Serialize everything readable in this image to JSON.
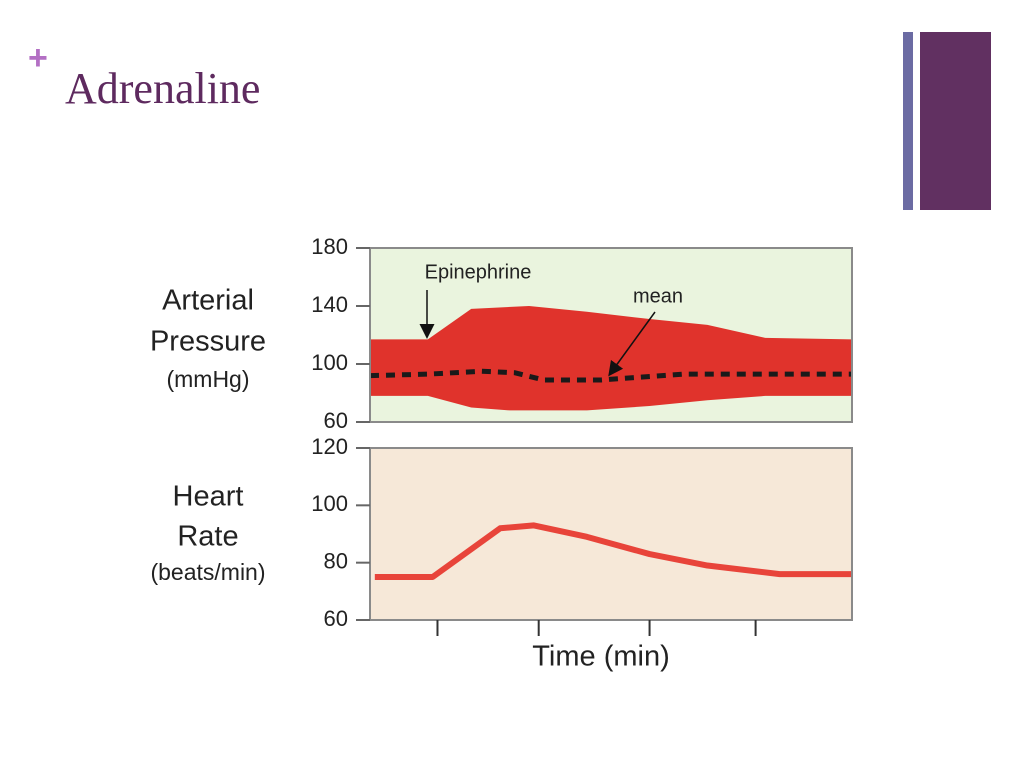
{
  "title": "Adrenaline",
  "chart_data": [
    {
      "type": "area",
      "ylabel": [
        "Arterial",
        "Pressure",
        "(mmHg)"
      ],
      "annotations": [
        "Epinephrine",
        "mean"
      ],
      "background": "#eaf4de",
      "xlim": [
        0,
        10
      ],
      "ylim": [
        60,
        180
      ],
      "yticks": [
        60,
        100,
        140,
        180
      ],
      "series": [
        {
          "color": "#e0332c",
          "x": [
            0,
            1.2,
            2.1,
            3.3,
            4.5,
            5.8,
            7,
            8.2,
            10
          ],
          "values": [
            117,
            117,
            138,
            140,
            136,
            131,
            127,
            118,
            117
          ]
        },
        {
          "color": "#e0332c",
          "x": [
            0,
            1.2,
            2.1,
            2.9,
            4.5,
            5.8,
            7,
            8.2,
            10
          ],
          "values": [
            78,
            78,
            70,
            68,
            68,
            71,
            75,
            78,
            78
          ]
        },
        {
          "color": "#1a1a1a",
          "style": "dashed",
          "x": [
            0,
            1.2,
            2.3,
            3,
            3.6,
            4.8,
            6.5,
            10
          ],
          "values": [
            92,
            93,
            95,
            94,
            89,
            89,
            93,
            93
          ]
        }
      ]
    },
    {
      "type": "line",
      "ylabel": [
        "Heart",
        "Rate",
        "(beats/min)"
      ],
      "xlabel": "Time (min)",
      "background": "#f6e8d8",
      "xlim": [
        0,
        10
      ],
      "xticks": [
        1.4,
        3.5,
        5.8,
        8
      ],
      "ylim": [
        60,
        120
      ],
      "yticks": [
        60,
        80,
        100,
        120
      ],
      "series": [
        {
          "color": "#e8443a",
          "x": [
            0.1,
            1.3,
            2.7,
            3.4,
            4.5,
            5.8,
            7,
            8.5,
            10
          ],
          "values": [
            75,
            75,
            92,
            93,
            89,
            83,
            79,
            76,
            76
          ]
        }
      ]
    }
  ]
}
